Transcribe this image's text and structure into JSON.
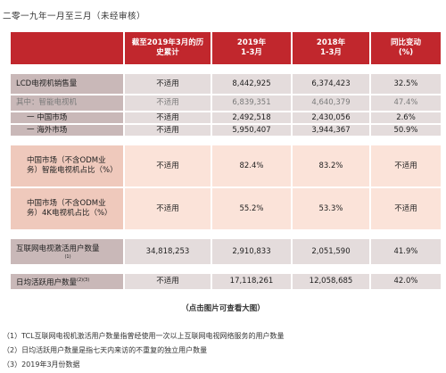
{
  "doc_title": "二零一九年一月至三月（未经审核）",
  "header": {
    "col1": "截至2019年3月的历史累计",
    "col2_line1": "2019年",
    "col2_line2": "1-3月",
    "col3_line1": "2018年",
    "col3_line2": "1-3月",
    "col4_line1": "同比变动",
    "col4_line2": "(%)"
  },
  "rows": [
    {
      "label": "LCD电视机销售量",
      "c1": "不适用",
      "c2": "8,442,925",
      "c3": "6,374,423",
      "c4": "32.5%"
    },
    {
      "label": "其中：智能电视机",
      "c1": "不适用",
      "c2": "6,839,351",
      "c3": "4,640,379",
      "c4": "47.4%"
    },
    {
      "label": "一  中国市场",
      "c1": "不适用",
      "c2": "2,492,518",
      "c3": "2,430,056",
      "c4": "2.6%"
    },
    {
      "label": "一  海外市场",
      "c1": "不适用",
      "c2": "5,950,407",
      "c3": "3,944,367",
      "c4": "50.9%"
    },
    {
      "label_line1": "中国市场（不含ODM业",
      "label_line2": "务）智能电视机占比（%）",
      "c1": "不适用",
      "c2": "82.4%",
      "c3": "83.2%",
      "c4": "不适用"
    },
    {
      "label_line1": "中国市场（不含ODM业",
      "label_line2": "务）4K电视机占比（%）",
      "c1": "不适用",
      "c2": "55.2%",
      "c3": "53.3%",
      "c4": "不适用"
    },
    {
      "label": "互联网电视激活用户数量",
      "label_sup": "(1)",
      "c1": "34,818,253",
      "c2": "2,910,833",
      "c3": "2,051,590",
      "c4": "41.9%"
    },
    {
      "label": "日均活跃用户数量",
      "label_sup": "(2)(3)",
      "c1": "不适用",
      "c2": "17,118,261",
      "c3": "12,058,685",
      "c4": "42.0%"
    }
  ],
  "click_hint": "（点击图片可查看大图）",
  "footnotes": [
    "（1）TCL互联网电视机激活用户数量指曾经使用一次以上互联网电视网络服务的用户数量",
    "（2）日均活跃用户数量是指七天内来访的不重复的独立用户数量",
    "（3）2019年3月份数据"
  ]
}
